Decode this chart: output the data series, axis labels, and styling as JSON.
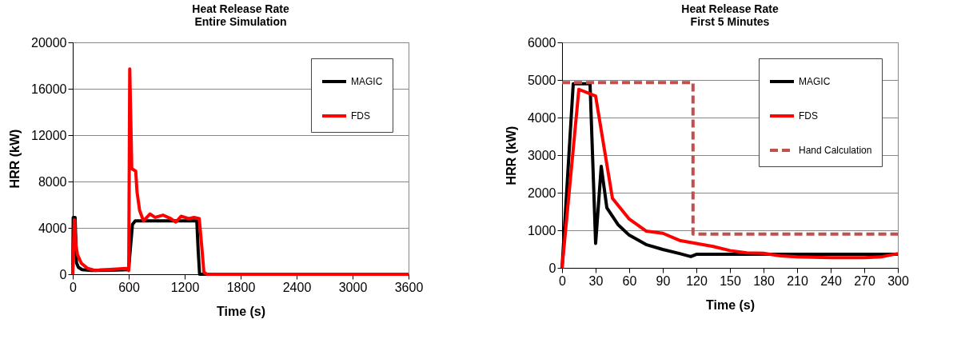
{
  "chart_data": [
    {
      "type": "line",
      "title": "Heat Release Rate\nEntire Simulation",
      "xlabel": "Time (s)",
      "ylabel": "HRR (kW)",
      "xlim": [
        0,
        3600
      ],
      "xticks": [
        0,
        600,
        1200,
        1800,
        2400,
        3000,
        3600
      ],
      "ylim": [
        0,
        20000
      ],
      "yticks": [
        0,
        4000,
        8000,
        12000,
        16000,
        20000
      ],
      "grid": "y",
      "legend": "top right",
      "line_style": "solid",
      "series": [
        {
          "name": "MAGIC",
          "color": "#000000",
          "x": [
            0,
            5,
            25,
            40,
            60,
            100,
            200,
            400,
            600,
            610,
            640,
            670,
            1000,
            1330,
            1345,
            1360,
            2400,
            3600
          ],
          "values": [
            0,
            4900,
            4900,
            1000,
            600,
            400,
            330,
            350,
            400,
            1500,
            4300,
            4600,
            4600,
            4600,
            2000,
            0,
            0,
            0
          ]
        },
        {
          "name": "FDS",
          "color": "#ff0000",
          "x": [
            0,
            17,
            35,
            50,
            92,
            160,
            245,
            300,
            400,
            500,
            578,
            600,
            611,
            633,
            675,
            689,
            717,
            758,
            828,
            883,
            967,
            1050,
            1106,
            1161,
            1244,
            1300,
            1356,
            1383,
            1406,
            1439,
            2400,
            3600
          ],
          "values": [
            0,
            4700,
            2500,
            1700,
            950,
            500,
            320,
            380,
            420,
            460,
            500,
            320,
            17700,
            9100,
            8900,
            7100,
            5500,
            4600,
            5200,
            4900,
            5100,
            4800,
            4500,
            5000,
            4800,
            4900,
            4800,
            2400,
            160,
            0,
            0,
            0
          ]
        }
      ]
    },
    {
      "type": "line",
      "title": "Heat Release Rate\nFirst 5 Minutes",
      "xlabel": "Time (s)",
      "ylabel": "HRR (kW)",
      "xlim": [
        0,
        300
      ],
      "xticks": [
        0,
        30,
        60,
        90,
        120,
        150,
        180,
        210,
        240,
        270,
        300
      ],
      "ylim": [
        0,
        6000
      ],
      "yticks": [
        0,
        1000,
        2000,
        3000,
        4000,
        5000,
        6000
      ],
      "grid": "y",
      "legend": "top right",
      "series": [
        {
          "name": "MAGIC",
          "color": "#000000",
          "line_style": "solid",
          "x": [
            0,
            10,
            25,
            30,
            35,
            40,
            50,
            60,
            75,
            90,
            105,
            115,
            120,
            150,
            200,
            250,
            300
          ],
          "values": [
            0,
            4900,
            4900,
            650,
            2700,
            1600,
            1150,
            870,
            620,
            490,
            380,
            300,
            360,
            360,
            360,
            360,
            360
          ]
        },
        {
          "name": "FDS",
          "color": "#ff0000",
          "line_style": "solid",
          "x": [
            0,
            15,
            30,
            45,
            60,
            75,
            90,
            105,
            120,
            135,
            150,
            165,
            180,
            195,
            210,
            240,
            270,
            285,
            300
          ],
          "values": [
            0,
            4750,
            4570,
            1850,
            1300,
            980,
            920,
            730,
            650,
            570,
            460,
            400,
            390,
            320,
            290,
            270,
            270,
            290,
            380
          ]
        },
        {
          "name": "Hand Calculation",
          "color": "#c0504d",
          "line_style": "dashed",
          "x": [
            0,
            117,
            117,
            300
          ],
          "values": [
            4930,
            4930,
            900,
            900
          ]
        }
      ]
    }
  ]
}
